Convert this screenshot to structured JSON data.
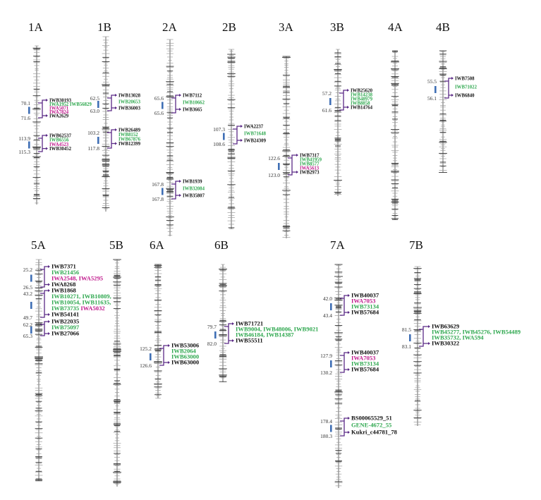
{
  "figure": {
    "colors": {
      "black": "#111111",
      "green": "#2fa84f",
      "magenta": "#c0188c",
      "bracket": "#5b2a86",
      "qtl_bar": "#3f6fb5",
      "tick": "#444444"
    },
    "chromosomes": [
      {
        "name": "1A",
        "regions": [
          {
            "pos_top": "70.1",
            "pos_bottom": "71.6",
            "markers": [
              [
                {
                  "t": "IWB30193",
                  "c": "black"
                }
              ],
              [
                {
                  "t": "IWA1952 IWB56829",
                  "c": "green"
                }
              ],
              [
                {
                  "t": "IWA5071",
                  "c": "magenta"
                }
              ],
              [
                {
                  "t": "IWA7824",
                  "c": "magenta"
                }
              ],
              [
                {
                  "t": "IWA2629",
                  "c": "black"
                }
              ]
            ]
          },
          {
            "pos_top": "113.9",
            "pos_bottom": "115.3",
            "markers": [
              [
                {
                  "t": "IWB62537",
                  "c": "black"
                }
              ],
              [
                {
                  "t": "IWB6556",
                  "c": "green"
                }
              ],
              [
                {
                  "t": "IWA4523",
                  "c": "magenta"
                }
              ],
              [
                {
                  "t": "IWB30452",
                  "c": "black"
                }
              ]
            ]
          }
        ]
      },
      {
        "name": "1B",
        "regions": [
          {
            "pos_top": "62.5",
            "pos_bottom": "63.0",
            "markers": [
              [
                {
                  "t": "IWB13028",
                  "c": "black"
                }
              ],
              [
                {
                  "t": "IWB20653",
                  "c": "green"
                }
              ],
              [
                {
                  "t": "IWB36003",
                  "c": "black"
                }
              ]
            ]
          },
          {
            "pos_top": "103.2",
            "pos_bottom": "117.8",
            "markers": [
              [
                {
                  "t": "IWB26489",
                  "c": "black"
                }
              ],
              [
                {
                  "t": "IWB8152",
                  "c": "green"
                }
              ],
              [
                {
                  "t": "IWB67876",
                  "c": "green"
                }
              ],
              [
                {
                  "t": "IWB12399",
                  "c": "black"
                }
              ]
            ]
          }
        ]
      },
      {
        "name": "2A",
        "regions": [
          {
            "pos_top": "65.6",
            "pos_bottom": "65.6",
            "markers": [
              [
                {
                  "t": "IWB7112",
                  "c": "black"
                }
              ],
              [
                {
                  "t": "IWB10662",
                  "c": "green"
                }
              ],
              [
                {
                  "t": "IWB3665",
                  "c": "black"
                }
              ]
            ]
          },
          {
            "pos_top": "167.8",
            "pos_bottom": "167.8",
            "markers": [
              [
                {
                  "t": "IWB1939",
                  "c": "black"
                }
              ],
              [
                {
                  "t": "IWB32084",
                  "c": "green"
                }
              ],
              [
                {
                  "t": "IWB35807",
                  "c": "black"
                }
              ]
            ]
          }
        ]
      },
      {
        "name": "2B",
        "regions": [
          {
            "pos_top": "107.3",
            "pos_bottom": "108.6",
            "markers": [
              [
                {
                  "t": "IWA2237",
                  "c": "black"
                }
              ],
              [
                {
                  "t": "IWB71648",
                  "c": "green"
                }
              ],
              [
                {
                  "t": "IWB24309",
                  "c": "black"
                }
              ]
            ]
          }
        ]
      },
      {
        "name": "3A",
        "regions": [
          {
            "pos_top": "122.6",
            "pos_bottom": "123.0",
            "markers": [
              [
                {
                  "t": "IWB7317",
                  "c": "black"
                }
              ],
              [
                {
                  "t": "IWB41959",
                  "c": "green"
                }
              ],
              [
                {
                  "t": "IWB8577",
                  "c": "green"
                }
              ],
              [
                {
                  "t": "IWA5613",
                  "c": "magenta"
                }
              ],
              [
                {
                  "t": "IWB2973",
                  "c": "black"
                }
              ]
            ]
          }
        ]
      },
      {
        "name": "3B",
        "regions": [
          {
            "pos_top": "57.2",
            "pos_bottom": "61.6",
            "markers": [
              [
                {
                  "t": "IWB25620",
                  "c": "black"
                }
              ],
              [
                {
                  "t": "IWB14238",
                  "c": "green"
                }
              ],
              [
                {
                  "t": "IWB48979",
                  "c": "green"
                }
              ],
              [
                {
                  "t": "IWB8858",
                  "c": "green"
                }
              ],
              [
                {
                  "t": "IWB14764",
                  "c": "black"
                }
              ]
            ]
          }
        ]
      },
      {
        "name": "4A",
        "regions": []
      },
      {
        "name": "4B",
        "regions": [
          {
            "pos_top": "55.5",
            "pos_bottom": "56.1",
            "markers": [
              [
                {
                  "t": "IWB7508",
                  "c": "black"
                }
              ],
              [
                {
                  "t": "IWB71022",
                  "c": "green"
                }
              ],
              [
                {
                  "t": "IWB6840",
                  "c": "black"
                }
              ]
            ]
          }
        ]
      },
      {
        "name": "5A",
        "regions": [
          {
            "pos_top": "25.2",
            "pos_bottom": "26.5",
            "markers": [
              [
                {
                  "t": "IWB7371",
                  "c": "black"
                }
              ],
              [
                {
                  "t": "IWB21456",
                  "c": "green"
                }
              ],
              [
                {
                  "t": "IWA2548, IWA5295",
                  "c": "magenta"
                }
              ],
              [
                {
                  "t": "IWA8268",
                  "c": "black"
                }
              ]
            ]
          },
          {
            "pos_top": "43.2",
            "pos_bottom": "49.7",
            "markers": [
              [
                {
                  "t": "IWB1868",
                  "c": "black"
                }
              ],
              [
                {
                  "t": "IWB10271, IWB10809,",
                  "c": "green"
                }
              ],
              [
                {
                  "t": "IWB10054, IWB11635,",
                  "c": "green"
                }
              ],
              [
                {
                  "t": "IWB73735 ",
                  "c": "green"
                },
                {
                  "t": "IWA5032",
                  "c": "magenta"
                }
              ],
              [
                {
                  "t": "IWB54141",
                  "c": "black"
                }
              ]
            ]
          },
          {
            "pos_top": "62.2",
            "pos_bottom": "65.3",
            "markers": [
              [
                {
                  "t": "IWB22035",
                  "c": "black"
                }
              ],
              [
                {
                  "t": "IWB75097",
                  "c": "green"
                }
              ],
              [
                {
                  "t": "IWB27066",
                  "c": "black"
                }
              ]
            ]
          }
        ]
      },
      {
        "name": "5B",
        "regions": []
      },
      {
        "name": "6A",
        "regions": [
          {
            "pos_top": "125.2",
            "pos_bottom": "126.6",
            "markers": [
              [
                {
                  "t": "IWB53006",
                  "c": "black"
                }
              ],
              [
                {
                  "t": "IWB2064",
                  "c": "green"
                }
              ],
              [
                {
                  "t": "IWB63000",
                  "c": "green"
                }
              ],
              [
                {
                  "t": "IWB63000",
                  "c": "black"
                }
              ]
            ]
          }
        ]
      },
      {
        "name": "6B",
        "regions": [
          {
            "pos_top": "79.7",
            "pos_bottom": "82.0",
            "markers": [
              [
                {
                  "t": "IWB71721",
                  "c": "black"
                }
              ],
              [
                {
                  "t": "IWB9004, IWB48006, IWB9021",
                  "c": "green"
                }
              ],
              [
                {
                  "t": "IWB46184, IWB14387",
                  "c": "green"
                }
              ],
              [
                {
                  "t": "IWB55511",
                  "c": "black"
                }
              ]
            ]
          }
        ]
      },
      {
        "name": "7A",
        "regions": [
          {
            "pos_top": "42.0",
            "pos_bottom": "43.4",
            "markers": [
              [
                {
                  "t": "IWB40037",
                  "c": "black"
                }
              ],
              [
                {
                  "t": "IWA7053",
                  "c": "magenta"
                }
              ],
              [
                {
                  "t": "IWB73134",
                  "c": "green"
                }
              ],
              [
                {
                  "t": "IWB57684",
                  "c": "black"
                }
              ]
            ]
          },
          {
            "pos_top": "127.9",
            "pos_bottom": "130.2",
            "markers": [
              [
                {
                  "t": "IWB40037",
                  "c": "black"
                }
              ],
              [
                {
                  "t": "IWA7053",
                  "c": "magenta"
                }
              ],
              [
                {
                  "t": "IWB73134",
                  "c": "green"
                }
              ],
              [
                {
                  "t": "IWB57684",
                  "c": "black"
                }
              ]
            ]
          },
          {
            "pos_top": "178.4",
            "pos_bottom": "180.3",
            "markers": [
              [
                {
                  "t": "BS00065529_51",
                  "c": "black"
                }
              ],
              [
                {
                  "t": "GENE-4672_55",
                  "c": "green"
                }
              ],
              [
                {
                  "t": "Kukri_c44781_78",
                  "c": "black"
                }
              ]
            ]
          }
        ]
      },
      {
        "name": "7B",
        "regions": [
          {
            "pos_top": "81.5",
            "pos_bottom": "83.1",
            "markers": [
              [
                {
                  "t": "IWB63629",
                  "c": "black"
                }
              ],
              [
                {
                  "t": "IWB45277, IWB45276, IWB54489",
                  "c": "green"
                }
              ],
              [
                {
                  "t": "IWB35732, IWA594",
                  "c": "green"
                }
              ],
              [
                {
                  "t": "IWB30322",
                  "c": "black"
                }
              ]
            ]
          }
        ]
      }
    ]
  }
}
